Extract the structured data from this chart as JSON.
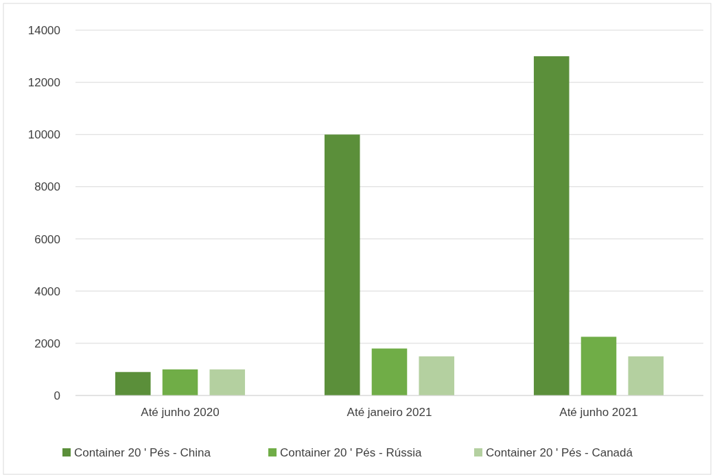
{
  "chart_data": {
    "type": "bar",
    "categories": [
      "Até junho 2020",
      "Até janeiro 2021",
      "Até junho 2021"
    ],
    "series": [
      {
        "name": "Container 20 ' Pés - China",
        "color": "#5b8f3a",
        "values": [
          900,
          10000,
          13000
        ]
      },
      {
        "name": "Container 20 ' Pés - Rússia",
        "color": "#70ad47",
        "values": [
          1000,
          1800,
          2250
        ]
      },
      {
        "name": "Container 20 ' Pés - Canadá",
        "color": "#b4d0a0",
        "values": [
          1000,
          1500,
          1500
        ]
      }
    ],
    "ylim": [
      0,
      14000
    ],
    "yticks": [
      0,
      2000,
      4000,
      6000,
      8000,
      10000,
      12000,
      14000
    ],
    "grid": "y",
    "legend": "bottom"
  }
}
